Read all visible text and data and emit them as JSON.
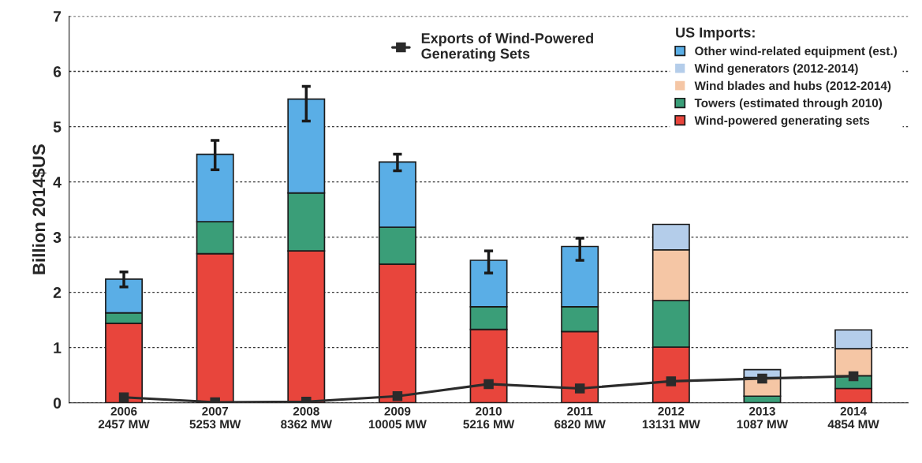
{
  "chart_data": {
    "type": "bar",
    "stacked": true,
    "ylabel": "Billion 2014$US",
    "legend_title": "US Imports:",
    "legend": "top right",
    "grid": "y",
    "categories": [
      "2006\n2457 MW",
      "2007\n5253 MW",
      "2008\n8362 MW",
      "2009\n10005 MW",
      "2010\n5216 MW",
      "2011\n6820 MW",
      "2012\n13131 MW",
      "2013\n1087 MW",
      "2014\n4854 MW"
    ],
    "ylim": [
      0,
      7
    ],
    "yticks": [
      0,
      1,
      2,
      3,
      4,
      5,
      6,
      7
    ],
    "series": [
      {
        "name": "Wind-powered generating sets",
        "color": "#e8453c",
        "values": [
          1.44,
          2.7,
          2.75,
          2.51,
          1.33,
          1.29,
          1.01,
          0,
          0.26
        ]
      },
      {
        "name": "Towers (estimated through 2010)",
        "color": "#3a9e78",
        "values": [
          0.19,
          0.58,
          1.05,
          0.67,
          0.41,
          0.45,
          0.84,
          0.12,
          0.23
        ]
      },
      {
        "name": "Wind blades and hubs (2012-2014)",
        "color": "#f5c6a5",
        "values": [
          0,
          0,
          0,
          0,
          0,
          0,
          0.92,
          0.34,
          0.49
        ]
      },
      {
        "name": "Wind generators (2012-2014)",
        "color": "#b4cdea",
        "values": [
          0,
          0,
          0,
          0,
          0,
          0,
          0.46,
          0.14,
          0.34
        ]
      },
      {
        "name": "Other wind-related equipment (est.)",
        "color": "#5aaee6",
        "values": [
          0.61,
          1.22,
          1.7,
          1.18,
          0.84,
          1.09,
          0,
          0,
          0
        ],
        "errors": [
          [
            2.1,
            2.37
          ],
          [
            4.22,
            4.75
          ],
          [
            5.1,
            5.73
          ],
          [
            4.2,
            4.5
          ],
          [
            2.35,
            2.75
          ],
          [
            2.58,
            2.98
          ],
          null,
          null,
          null
        ]
      },
      {
        "name": "Exports of Wind-Powered\nGenerating Sets",
        "type": "line",
        "color": "#2b2b2b",
        "marker": "square",
        "values": [
          0.1,
          0.01,
          0.02,
          0.12,
          0.34,
          0.26,
          0.39,
          0.44,
          0.48
        ]
      }
    ]
  }
}
